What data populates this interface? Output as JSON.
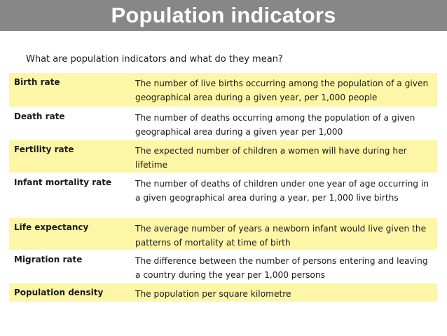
{
  "title": "Population indicators",
  "subtitle": "What are population indicators and what do they mean?",
  "rows": [
    {
      "term": "Birth rate",
      "definition": "The number of live births occurring among the population of a given geographical area during a given year, per 1,000 people"
    },
    {
      "term": "Death rate",
      "definition": "The number of deaths occurring among the population of a given geographical area during a given year per 1,000"
    },
    {
      "term": "Fertility rate",
      "definition": "The expected number of children a women will have during her lifetime"
    },
    {
      "term": "Infant mortality rate",
      "definition": "The number of deaths of children under one year of age occurring in a given geographical area during a year, per 1,000 live births"
    },
    {
      "term": "Life expectancy",
      "definition": "The average number of years a newborn infant would live given the patterns of mortality at time of birth"
    },
    {
      "term": "Migration rate",
      "definition": "The difference between the number of persons entering and leaving a country during the year per 1,000 persons"
    },
    {
      "term": "Population density",
      "definition": "The population per square kilometre"
    }
  ],
  "colors": {
    "title_bar": "#878787",
    "row_highlight": "#fdf6a7",
    "row_plain": "#ffffff"
  }
}
